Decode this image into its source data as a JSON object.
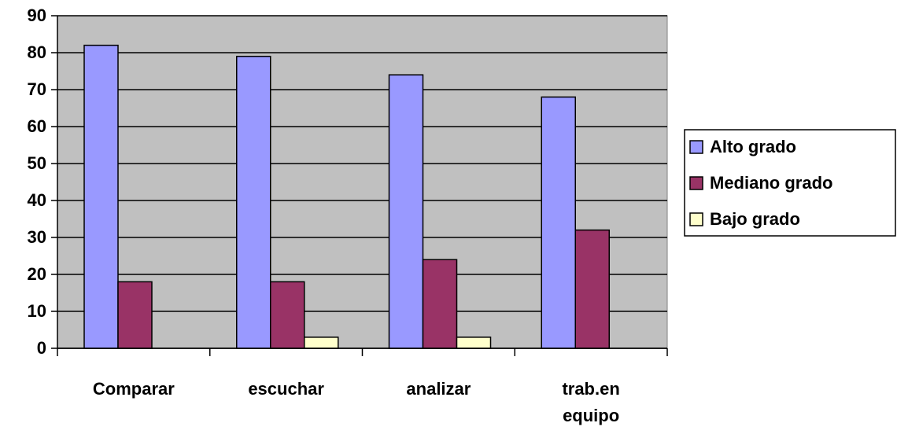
{
  "chart_data": {
    "type": "bar",
    "categories": [
      "Comparar",
      "escuchar",
      "analizar",
      "trab.en equipo"
    ],
    "series": [
      {
        "name": "Alto grado",
        "color": "#9999ff",
        "values": [
          82,
          79,
          74,
          68
        ]
      },
      {
        "name": "Mediano grado",
        "color": "#993366",
        "values": [
          18,
          18,
          24,
          32
        ]
      },
      {
        "name": "Bajo grado",
        "color": "#ffffcc",
        "values": [
          0,
          3,
          3,
          0
        ]
      }
    ],
    "ylim": [
      0,
      90
    ],
    "yticks": [
      0,
      10,
      20,
      30,
      40,
      50,
      60,
      70,
      80,
      90
    ],
    "grid": true,
    "plot_background": "#c0c0c0",
    "legend": "right"
  }
}
